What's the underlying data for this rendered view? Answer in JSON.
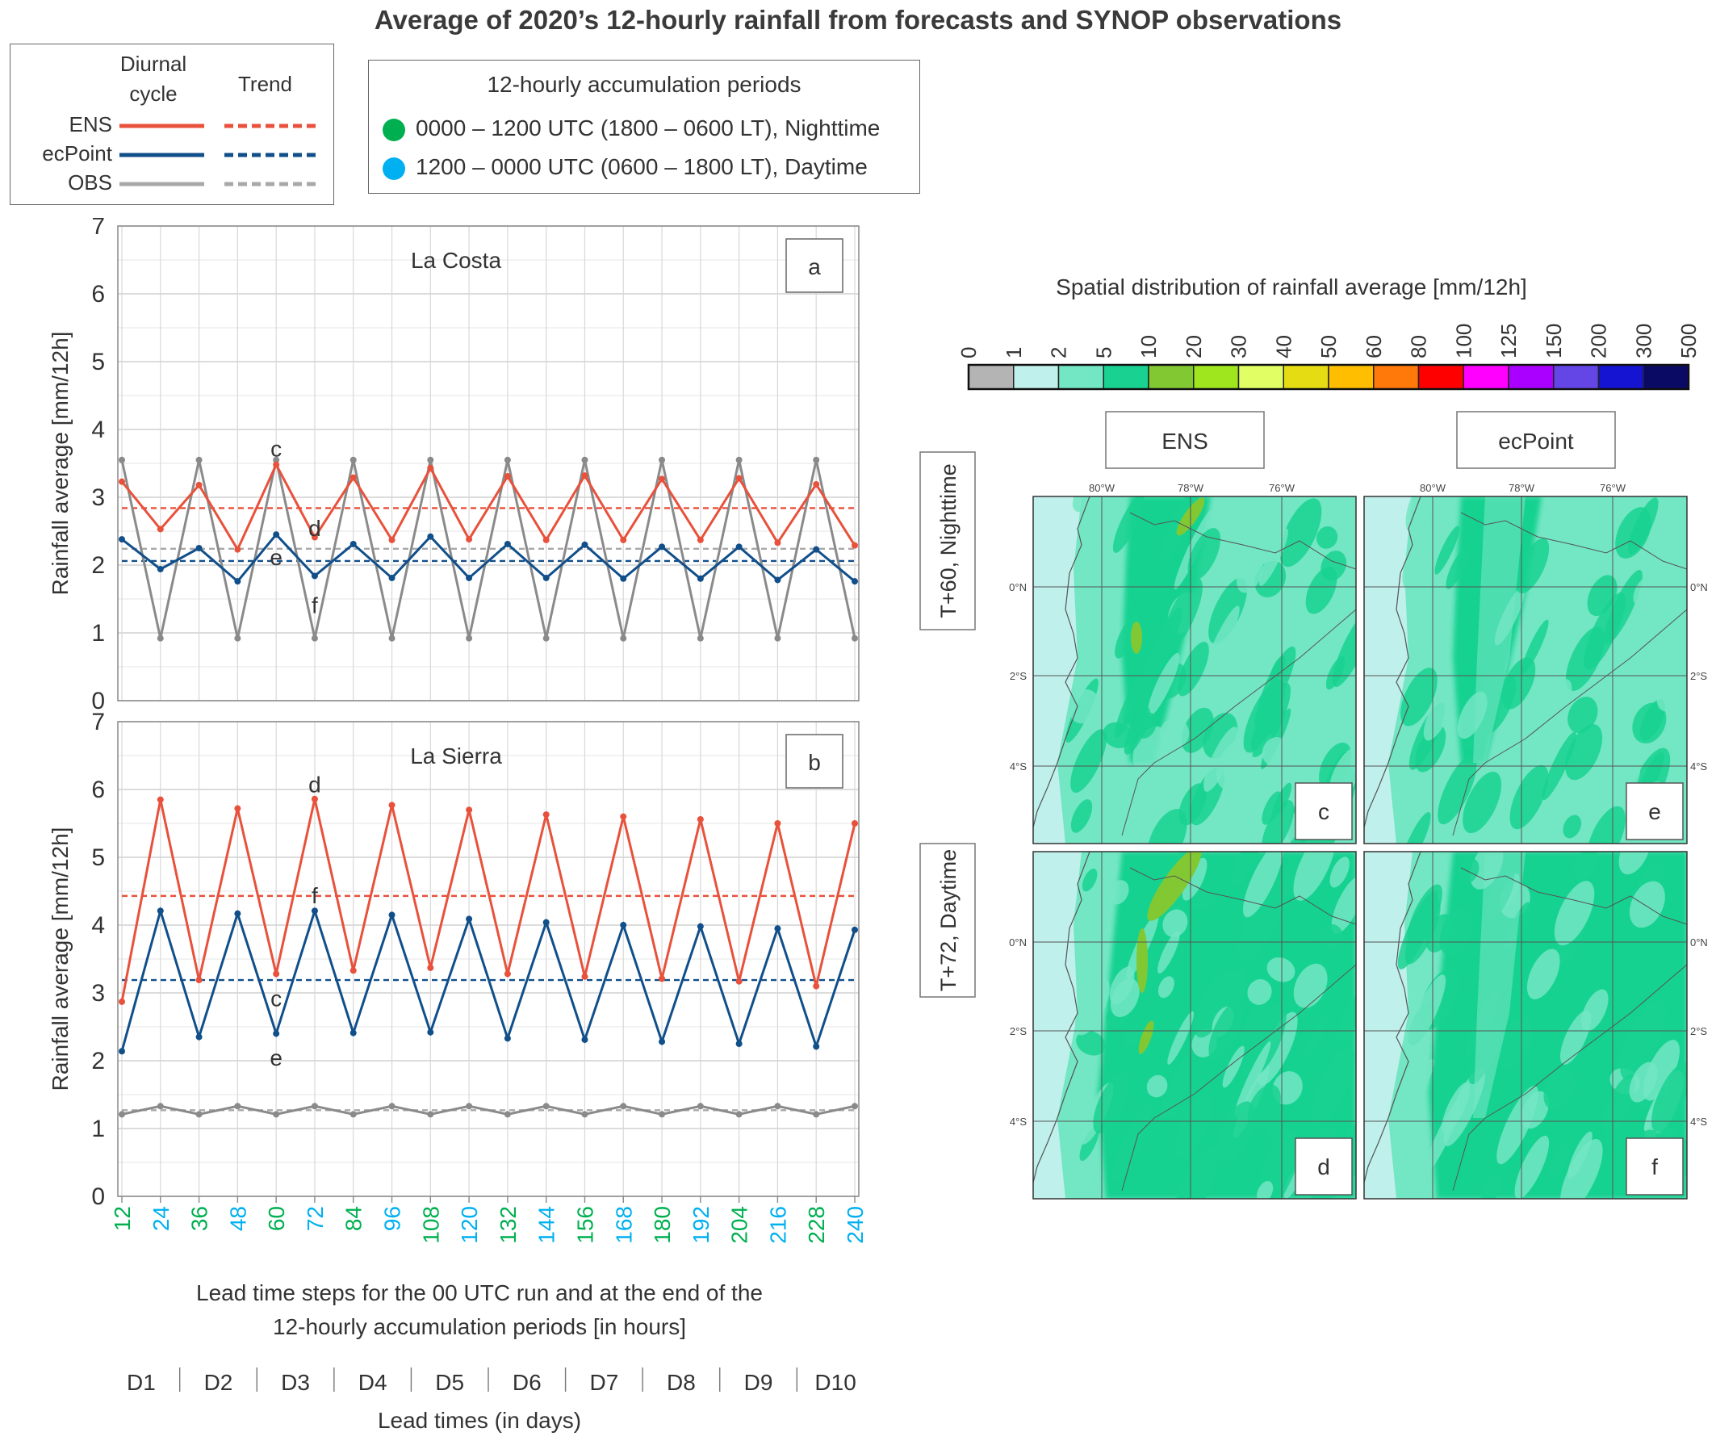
{
  "title": "Average of 2020’s 12-hourly rainfall from forecasts and SYNOP observations",
  "legend": {
    "col_diurnal": "Diurnal cycle",
    "col_trend": "Trend",
    "rows": [
      {
        "label": "ENS",
        "color": "#e8513b"
      },
      {
        "label": "ecPoint",
        "color": "#114f8a"
      },
      {
        "label": "OBS",
        "color": "#a8a8a8"
      }
    ]
  },
  "periods": {
    "title": "12-hourly accumulation periods",
    "items": [
      {
        "label": "0000 – 1200 UTC (1800 – 0600 LT), Nighttime",
        "color": "#00b050"
      },
      {
        "label": "1200 – 0000 UTC (0600 – 1800 LT), Daytime",
        "color": "#00b0f0"
      }
    ]
  },
  "xaxis": {
    "label_line1": "Lead time steps for the 00 UTC run and at the end of the",
    "label_line2": "12-hourly accumulation periods [in hours]",
    "days": [
      "D1",
      "D2",
      "D3",
      "D4",
      "D5",
      "D6",
      "D7",
      "D8",
      "D9",
      "D10"
    ],
    "days_label": "Lead times (in days)"
  },
  "chart_data": [
    {
      "type": "line",
      "panel": "a",
      "title": "La Costa",
      "ylabel": "Rainfall average [mm/12h]",
      "ylim": [
        0,
        7
      ],
      "yticks": [
        0,
        1,
        2,
        3,
        4,
        5,
        6,
        7
      ],
      "x": [
        12,
        24,
        36,
        48,
        60,
        72,
        84,
        96,
        108,
        120,
        132,
        144,
        156,
        168,
        180,
        192,
        204,
        216,
        228,
        240
      ],
      "series": [
        {
          "name": "ENS",
          "color": "#e8513b",
          "values": [
            3.23,
            2.53,
            3.18,
            2.23,
            3.48,
            2.41,
            3.29,
            2.37,
            3.43,
            2.38,
            3.31,
            2.37,
            3.32,
            2.37,
            3.27,
            2.37,
            3.28,
            2.33,
            3.19,
            2.29
          ],
          "trend": 2.84
        },
        {
          "name": "ecPoint",
          "color": "#114f8a",
          "values": [
            2.38,
            1.94,
            2.25,
            1.76,
            2.45,
            1.84,
            2.31,
            1.81,
            2.42,
            1.81,
            2.31,
            1.81,
            2.3,
            1.8,
            2.27,
            1.8,
            2.27,
            1.78,
            2.23,
            1.76
          ],
          "trend": 2.06
        },
        {
          "name": "OBS",
          "color": "#8a8a8a",
          "values": [
            3.55,
            0.92,
            3.55,
            0.92,
            3.55,
            0.92,
            3.55,
            0.92,
            3.55,
            0.92,
            3.55,
            0.92,
            3.55,
            0.92,
            3.55,
            0.92,
            3.55,
            0.92,
            3.55,
            0.92
          ],
          "trend": 2.24
        }
      ],
      "annotations": [
        {
          "text": "c",
          "x": 60,
          "y": 3.72
        },
        {
          "text": "d",
          "x": 72,
          "y": 2.55
        },
        {
          "text": "e",
          "x": 60,
          "y": 2.12
        },
        {
          "text": "f",
          "x": 72,
          "y": 1.41
        }
      ]
    },
    {
      "type": "line",
      "panel": "b",
      "title": "La Sierra",
      "ylabel": "Rainfall average [mm/12h]",
      "ylim": [
        0,
        7
      ],
      "yticks": [
        0,
        1,
        2,
        3,
        4,
        5,
        6,
        7
      ],
      "x": [
        12,
        24,
        36,
        48,
        60,
        72,
        84,
        96,
        108,
        120,
        132,
        144,
        156,
        168,
        180,
        192,
        204,
        216,
        228,
        240
      ],
      "series": [
        {
          "name": "ENS",
          "color": "#e8513b",
          "values": [
            2.87,
            5.85,
            3.19,
            5.72,
            3.28,
            5.86,
            3.33,
            5.77,
            3.37,
            5.7,
            3.28,
            5.63,
            3.24,
            5.6,
            3.21,
            5.56,
            3.17,
            5.5,
            3.1,
            5.5
          ],
          "trend": 4.43
        },
        {
          "name": "ecPoint",
          "color": "#114f8a",
          "values": [
            2.14,
            4.21,
            2.35,
            4.17,
            2.4,
            4.21,
            2.41,
            4.15,
            2.42,
            4.09,
            2.33,
            4.04,
            2.31,
            4.0,
            2.28,
            3.98,
            2.25,
            3.95,
            2.21,
            3.93
          ],
          "trend": 3.19
        },
        {
          "name": "OBS",
          "color": "#8a8a8a",
          "values": [
            1.21,
            1.33,
            1.21,
            1.33,
            1.21,
            1.33,
            1.21,
            1.33,
            1.21,
            1.33,
            1.21,
            1.33,
            1.21,
            1.33,
            1.21,
            1.33,
            1.21,
            1.33,
            1.21,
            1.33
          ],
          "trend": 1.27
        }
      ],
      "annotations": [
        {
          "text": "d",
          "x": 72,
          "y": 6.08
        },
        {
          "text": "f",
          "x": 72,
          "y": 4.44
        },
        {
          "text": "c",
          "x": 60,
          "y": 2.92
        },
        {
          "text": "e",
          "x": 60,
          "y": 2.05
        }
      ]
    },
    {
      "type": "heatmap",
      "colorbar_title": "Spatial distribution of rainfall average [mm/12h]",
      "colorbar_ticks": [
        "0",
        "1",
        "2",
        "5",
        "10",
        "20",
        "30",
        "40",
        "50",
        "60",
        "80",
        "100",
        "125",
        "150",
        "200",
        "300",
        "500"
      ],
      "colorbar_colors": [
        "#b4b4b4",
        "#bff0eb",
        "#73e6c3",
        "#19d291",
        "#82c832",
        "#a0e61e",
        "#e1ff64",
        "#e6dc14",
        "#ffbe00",
        "#ff780a",
        "#ff0000",
        "#ff00ff",
        "#aa00ff",
        "#6446e6",
        "#1414d2",
        "#0a0a64"
      ],
      "columns": [
        "ENS",
        "ecPoint"
      ],
      "rows": [
        "T+60, Nighttime",
        "T+72, Daytime"
      ],
      "panel_labels": [
        "c",
        "e",
        "d",
        "f"
      ],
      "lon_ticks": [
        "80°W",
        "78°W",
        "76°W"
      ],
      "lat_ticks": [
        "0°N",
        "2°S",
        "4°S"
      ]
    }
  ]
}
